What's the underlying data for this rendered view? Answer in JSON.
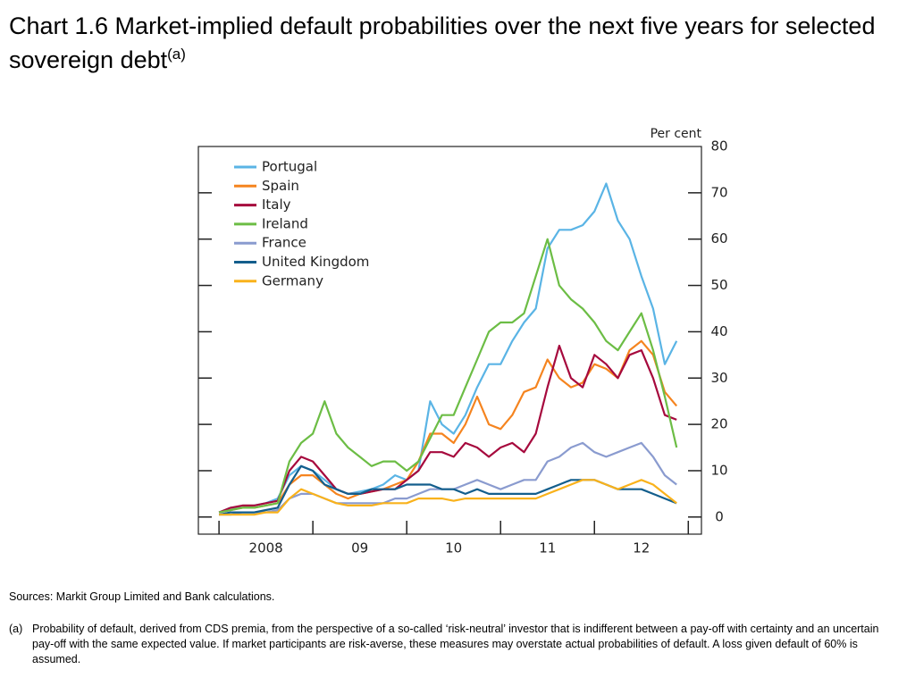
{
  "chart_data": {
    "type": "line",
    "title": "Chart 1.6  Market-implied default probabilities over the next five years for selected sovereign debt",
    "title_note": "(a)",
    "y_axis_label": "Per cent",
    "xlim": [
      2007.78,
      2013.14
    ],
    "xticks": [
      {
        "value": 2008,
        "label": "2008"
      },
      {
        "value": 2009,
        "label": "09"
      },
      {
        "value": 2010,
        "label": "10"
      },
      {
        "value": 2011,
        "label": "11"
      },
      {
        "value": 2012,
        "label": "12"
      }
    ],
    "ylim": [
      -3.7,
      80
    ],
    "yticks": [
      0,
      10,
      20,
      30,
      40,
      50,
      60,
      70,
      80
    ],
    "legend": "upper left",
    "x": [
      2008.0,
      2008.125,
      2008.25,
      2008.375,
      2008.5,
      2008.625,
      2008.75,
      2008.875,
      2009.0,
      2009.125,
      2009.25,
      2009.375,
      2009.5,
      2009.625,
      2009.75,
      2009.875,
      2010.0,
      2010.125,
      2010.25,
      2010.375,
      2010.5,
      2010.625,
      2010.75,
      2010.875,
      2011.0,
      2011.125,
      2011.25,
      2011.375,
      2011.5,
      2011.625,
      2011.75,
      2011.875,
      2012.0,
      2012.125,
      2012.25,
      2012.375,
      2012.5,
      2012.625,
      2012.75,
      2012.875
    ],
    "series": [
      {
        "name": "Portugal",
        "color": "#5ab4e5",
        "values": [
          1,
          2,
          2,
          2.5,
          3,
          4,
          9,
          11,
          10,
          8,
          6,
          5,
          5.5,
          6,
          7,
          9,
          8,
          10,
          25,
          20,
          18,
          22,
          28,
          33,
          33,
          38,
          42,
          45,
          58,
          62,
          62,
          63,
          66,
          72,
          64,
          60,
          52,
          45,
          33,
          38
        ]
      },
      {
        "name": "Spain",
        "color": "#f5841f",
        "values": [
          1,
          1.5,
          2,
          2,
          2.5,
          3,
          7,
          9,
          9,
          7,
          5,
          4,
          5,
          5.5,
          6,
          7,
          8,
          12,
          18,
          18,
          16,
          20,
          26,
          20,
          19,
          22,
          27,
          28,
          34,
          30,
          28,
          29,
          33,
          32,
          30,
          36,
          38,
          35,
          27,
          24
        ]
      },
      {
        "name": "Italy",
        "color": "#a6093d",
        "values": [
          1,
          2,
          2.5,
          2.5,
          3,
          3.5,
          10,
          13,
          12,
          9,
          6,
          5,
          5,
          5.5,
          6,
          6,
          8,
          10,
          14,
          14,
          13,
          16,
          15,
          13,
          15,
          16,
          14,
          18,
          28,
          37,
          30,
          28,
          35,
          33,
          30,
          35,
          36,
          30,
          22,
          21
        ]
      },
      {
        "name": "Ireland",
        "color": "#6cbd45",
        "values": [
          1,
          1.5,
          2,
          2,
          2.5,
          3,
          12,
          16,
          18,
          25,
          18,
          15,
          13,
          11,
          12,
          12,
          10,
          12,
          17,
          22,
          22,
          28,
          34,
          40,
          42,
          42,
          44,
          52,
          60,
          50,
          47,
          45,
          42,
          38,
          36,
          40,
          44,
          36,
          26,
          15
        ]
      },
      {
        "name": "France",
        "color": "#8a9bcf",
        "values": [
          0.5,
          0.5,
          1,
          1,
          1,
          1.5,
          4,
          5,
          5,
          4,
          3,
          3,
          3,
          3,
          3,
          4,
          4,
          5,
          6,
          6,
          6,
          7,
          8,
          7,
          6,
          7,
          8,
          8,
          12,
          13,
          15,
          16,
          14,
          13,
          14,
          15,
          16,
          13,
          9,
          7
        ]
      },
      {
        "name": "United Kingdom",
        "color": "#135e8c",
        "values": [
          0.5,
          1,
          1,
          1,
          1.5,
          2,
          7,
          11,
          10,
          7,
          6,
          5,
          5,
          6,
          6,
          6,
          7,
          7,
          7,
          6,
          6,
          5,
          6,
          5,
          5,
          5,
          5,
          5,
          6,
          7,
          8,
          8,
          8,
          7,
          6,
          6,
          6,
          5,
          4,
          3
        ]
      },
      {
        "name": "Germany",
        "color": "#f9b21b",
        "values": [
          0.5,
          0.5,
          0.5,
          0.5,
          1,
          1,
          4,
          6,
          5,
          4,
          3,
          2.5,
          2.5,
          2.5,
          3,
          3,
          3,
          4,
          4,
          4,
          3.5,
          4,
          4,
          4,
          4,
          4,
          4,
          4,
          5,
          6,
          7,
          8,
          8,
          7,
          6,
          7,
          8,
          7,
          5,
          3
        ]
      }
    ]
  },
  "sources": "Sources:  Markit Group Limited and Bank calculations.",
  "footnote": {
    "marker": "(a)",
    "text": "Probability of default, derived from CDS premia, from the perspective of a so-called ‘risk-neutral’ investor that is indifferent between a pay-off with certainty and an uncertain pay-off with the same expected value.  If market participants are risk-averse, these measures may overstate actual probabilities of default.  A loss given default of 60% is assumed."
  }
}
